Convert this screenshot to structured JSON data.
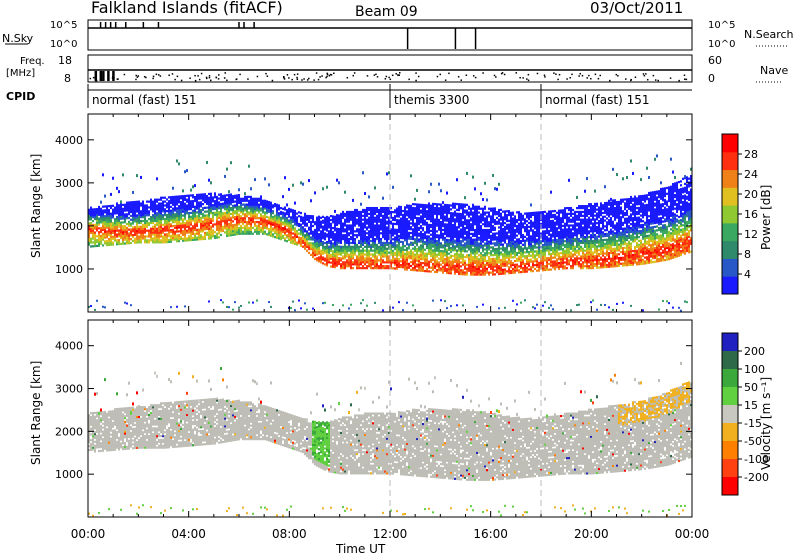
{
  "header": {
    "title": "Falkland Islands (fitACF)",
    "beam": "Beam 09",
    "date": "03/Oct/2011"
  },
  "status_panels": {
    "nsky_label": "N.Sky",
    "nsky_ticks": [
      "10^5",
      "10^0"
    ],
    "nsearch_label": "N.Search",
    "nsearch_ticks": [
      "10^5",
      "10^0"
    ],
    "freq_label": "Freq.",
    "freq_unit": "[MHz]",
    "freq_ticks": [
      "18",
      "8"
    ],
    "nave_label": "Nave",
    "nave_ticks": [
      "60",
      "0"
    ],
    "cpid_label": "CPID",
    "cpid_segments": [
      {
        "label": "normal (fast) 151",
        "start_hour": 0,
        "end_hour": 12
      },
      {
        "label": "themis 3300",
        "start_hour": 12,
        "end_hour": 18
      },
      {
        "label": "normal (fast) 151",
        "start_hour": 18,
        "end_hour": 24
      }
    ],
    "nsky_spikes_hours": [
      0.5,
      0.7,
      0.9,
      1.1,
      1.5,
      2.2,
      2.8,
      6.0,
      6.2,
      6.6,
      12.7,
      14.6,
      15.4
    ],
    "freq_markers_hours": [
      0.3,
      0.5,
      0.6,
      0.8,
      1.0
    ]
  },
  "chart_data": [
    {
      "type": "heatmap",
      "title": "",
      "xlabel": "",
      "ylabel": "Slant Range [km]",
      "x_ticks": [
        "00:00",
        "04:00",
        "08:00",
        "12:00",
        "16:00",
        "20:00",
        "00:00"
      ],
      "xlim_hours": [
        0,
        24
      ],
      "y_ticks": [
        1000,
        2000,
        3000,
        4000
      ],
      "ylim": [
        0,
        4600
      ],
      "colorbar": {
        "label": "Power [dB]",
        "ticks": [
          4,
          8,
          12,
          16,
          20,
          24,
          28
        ],
        "range": [
          0,
          32
        ],
        "colors": [
          "#1a1aff",
          "#2858c8",
          "#2e8a6a",
          "#3aa860",
          "#8fc830",
          "#e0c020",
          "#f08018",
          "#ff3010",
          "#ff0000"
        ]
      },
      "echo_band": {
        "hours": [
          0,
          1,
          2,
          3,
          4,
          5,
          6,
          7,
          8,
          8.5,
          9,
          9.5,
          10,
          11,
          12,
          13,
          14,
          15,
          16,
          17,
          18,
          19,
          20,
          21,
          22,
          23,
          24
        ],
        "lower_km": [
          1500,
          1550,
          1600,
          1600,
          1650,
          1700,
          1800,
          1800,
          1600,
          1500,
          1200,
          1050,
          1000,
          1000,
          1000,
          950,
          900,
          850,
          850,
          900,
          950,
          1000,
          1000,
          1050,
          1100,
          1200,
          1400
        ],
        "peak_km": [
          1900,
          1850,
          1850,
          1900,
          1950,
          2050,
          2150,
          2100,
          1850,
          1600,
          1300,
          1150,
          1100,
          1100,
          1100,
          1100,
          1050,
          1000,
          1000,
          1050,
          1100,
          1150,
          1200,
          1250,
          1350,
          1450,
          1650
        ],
        "upper_km": [
          2400,
          2500,
          2550,
          2650,
          2700,
          2750,
          2700,
          2600,
          2400,
          2300,
          2200,
          2200,
          2300,
          2400,
          2400,
          2500,
          2500,
          2500,
          2400,
          2300,
          2300,
          2400,
          2500,
          2600,
          2700,
          2900,
          3200
        ]
      },
      "vertical_guides_hours": [
        12,
        18
      ]
    },
    {
      "type": "heatmap",
      "title": "",
      "xlabel": "Time UT",
      "ylabel": "Slant Range [km]",
      "x_ticks": [
        "00:00",
        "04:00",
        "08:00",
        "12:00",
        "16:00",
        "20:00",
        "00:00"
      ],
      "xlim_hours": [
        0,
        24
      ],
      "y_ticks": [
        1000,
        2000,
        3000,
        4000
      ],
      "ylim": [
        0,
        4600
      ],
      "colorbar": {
        "label": "Velocity [m s⁻¹]",
        "ticks": [
          200,
          100,
          50,
          15,
          -15,
          -50,
          -100,
          -200
        ],
        "colors": [
          "#2020c0",
          "#2e6a4a",
          "#3aa83a",
          "#60d040",
          "#c8c8c0",
          "#f0b020",
          "#ff8000",
          "#ff4010",
          "#ff0000"
        ]
      },
      "ground_scatter_color": "#bebeb6",
      "green_feature_hours": [
        8.9,
        9.6
      ],
      "orange_feature_hours": [
        21,
        24
      ],
      "vertical_guides_hours": [
        12,
        18
      ]
    }
  ]
}
